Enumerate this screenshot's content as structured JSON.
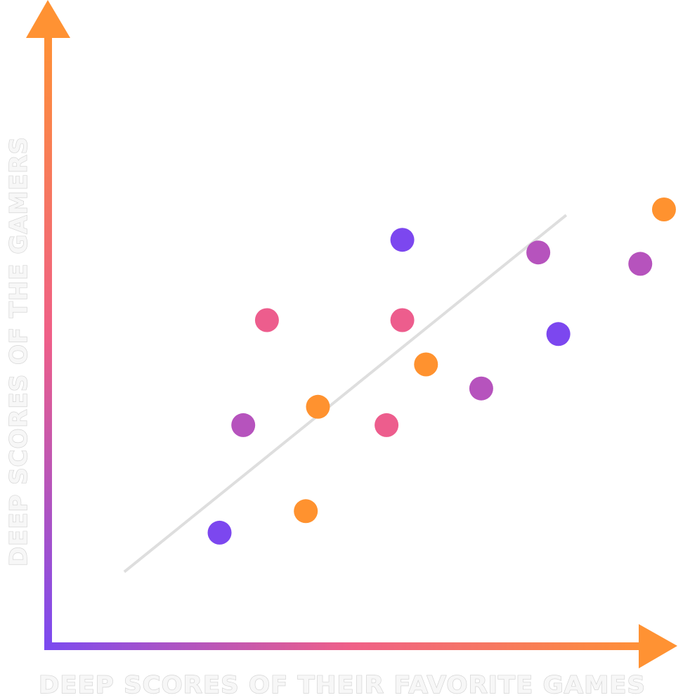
{
  "chart_data": {
    "type": "scatter",
    "title": "",
    "xlabel": "DEEP SCORES OF THEIR FAVORITE GAMES",
    "ylabel": "DEEP SCORES OF THE GAMERS",
    "grid": false,
    "legend": "none",
    "tick_labels": false,
    "xlim": [
      0,
      100
    ],
    "ylim": [
      0,
      100
    ],
    "trend_line": {
      "x": [
        12.6,
        85.4
      ],
      "y": [
        11.7,
        68.1
      ],
      "color": "#dedede"
    },
    "axis_gradient": {
      "start": "#7b4af0",
      "mid": "#ef5f88",
      "end": "#ff9233"
    },
    "points": [
      {
        "x": 28.3,
        "y": 17.9,
        "color": "#7c47ef"
      },
      {
        "x": 42.5,
        "y": 21.3,
        "color": "#ff922f"
      },
      {
        "x": 32.2,
        "y": 34.9,
        "color": "#b653bd"
      },
      {
        "x": 44.5,
        "y": 37.8,
        "color": "#ff922f"
      },
      {
        "x": 55.8,
        "y": 34.9,
        "color": "#ed5d8d"
      },
      {
        "x": 36.1,
        "y": 51.5,
        "color": "#ed5d8d"
      },
      {
        "x": 58.4,
        "y": 51.5,
        "color": "#ed5d8d"
      },
      {
        "x": 62.3,
        "y": 44.5,
        "color": "#ff922f"
      },
      {
        "x": 71.4,
        "y": 40.7,
        "color": "#b653bd"
      },
      {
        "x": 58.4,
        "y": 64.2,
        "color": "#7c47ef"
      },
      {
        "x": 80.8,
        "y": 62.2,
        "color": "#b653bd"
      },
      {
        "x": 84.1,
        "y": 49.3,
        "color": "#7c47ef"
      },
      {
        "x": 97.6,
        "y": 60.4,
        "color": "#b653bd"
      },
      {
        "x": 101.5,
        "y": 69.0,
        "color": "#ff922f"
      }
    ]
  }
}
